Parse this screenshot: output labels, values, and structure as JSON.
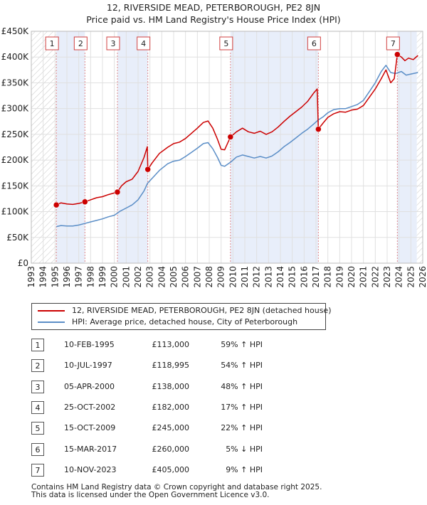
{
  "chart_data": {
    "type": "line",
    "title": "12, RIVERSIDE MEAD, PETERBOROUGH, PE2 8JN",
    "subtitle": "Price paid vs. HM Land Registry's House Price Index (HPI)",
    "xlim": [
      1993,
      2026
    ],
    "ylim": [
      0,
      450000
    ],
    "x_ticks": [
      "1993",
      "1994",
      "1995",
      "1996",
      "1997",
      "1998",
      "1999",
      "2000",
      "2001",
      "2002",
      "2003",
      "2004",
      "2005",
      "2006",
      "2007",
      "2008",
      "2009",
      "2010",
      "2011",
      "2012",
      "2013",
      "2014",
      "2015",
      "2016",
      "2017",
      "2018",
      "2019",
      "2020",
      "2021",
      "2022",
      "2023",
      "2024",
      "2025",
      "2026"
    ],
    "y_ticks": [
      {
        "value": 0,
        "label": "£0"
      },
      {
        "value": 50000,
        "label": "£50K"
      },
      {
        "value": 100000,
        "label": "£100K"
      },
      {
        "value": 150000,
        "label": "£150K"
      },
      {
        "value": 200000,
        "label": "£200K"
      },
      {
        "value": 250000,
        "label": "£250K"
      },
      {
        "value": 300000,
        "label": "£300K"
      },
      {
        "value": 350000,
        "label": "£350K"
      },
      {
        "value": 400000,
        "label": "£400K"
      },
      {
        "value": 450000,
        "label": "£450K"
      }
    ],
    "series": [
      {
        "name": "12, RIVERSIDE MEAD, PETERBOROUGH, PE2 8JN (detached house)",
        "color": "#cc0000",
        "points": [
          [
            1995.11,
            113000
          ],
          [
            1995.5,
            117000
          ],
          [
            1996,
            115000
          ],
          [
            1996.5,
            114000
          ],
          [
            1997,
            116000
          ],
          [
            1997.52,
            118995
          ],
          [
            1998,
            123000
          ],
          [
            1998.5,
            127000
          ],
          [
            1999,
            129000
          ],
          [
            1999.5,
            133000
          ],
          [
            2000.26,
            138000
          ],
          [
            2000.6,
            150000
          ],
          [
            2001,
            158000
          ],
          [
            2001.5,
            163000
          ],
          [
            2002,
            178000
          ],
          [
            2002.5,
            205000
          ],
          [
            2002.78,
            226000
          ],
          [
            2002.82,
            182000
          ],
          [
            2003.2,
            195000
          ],
          [
            2003.8,
            213000
          ],
          [
            2004.5,
            225000
          ],
          [
            2005,
            232000
          ],
          [
            2005.5,
            235000
          ],
          [
            2006,
            242000
          ],
          [
            2006.5,
            252000
          ],
          [
            2007,
            262000
          ],
          [
            2007.5,
            273000
          ],
          [
            2007.9,
            276000
          ],
          [
            2008.3,
            262000
          ],
          [
            2008.7,
            240000
          ],
          [
            2009,
            221000
          ],
          [
            2009.3,
            220000
          ],
          [
            2009.79,
            245000
          ],
          [
            2010.3,
            255000
          ],
          [
            2010.8,
            262000
          ],
          [
            2011.3,
            255000
          ],
          [
            2011.8,
            252000
          ],
          [
            2012.3,
            256000
          ],
          [
            2012.8,
            250000
          ],
          [
            2013.3,
            255000
          ],
          [
            2013.8,
            264000
          ],
          [
            2014.3,
            275000
          ],
          [
            2014.8,
            285000
          ],
          [
            2015.3,
            294000
          ],
          [
            2015.8,
            303000
          ],
          [
            2016.3,
            314000
          ],
          [
            2016.8,
            330000
          ],
          [
            2017.1,
            338000
          ],
          [
            2017.15,
            300000
          ],
          [
            2017.2,
            260000
          ],
          [
            2017.6,
            272000
          ],
          [
            2018,
            283000
          ],
          [
            2018.5,
            290000
          ],
          [
            2019,
            294000
          ],
          [
            2019.5,
            293000
          ],
          [
            2020,
            297000
          ],
          [
            2020.5,
            299000
          ],
          [
            2021,
            306000
          ],
          [
            2021.5,
            322000
          ],
          [
            2022,
            338000
          ],
          [
            2022.5,
            358000
          ],
          [
            2022.9,
            375000
          ],
          [
            2023.3,
            350000
          ],
          [
            2023.6,
            358000
          ],
          [
            2023.86,
            405000
          ],
          [
            2024.2,
            400000
          ],
          [
            2024.5,
            393000
          ],
          [
            2024.8,
            398000
          ],
          [
            2025.2,
            395000
          ],
          [
            2025.6,
            403000
          ]
        ]
      },
      {
        "name": "HPI: Average price, detached house, City of Peterborough",
        "color": "#5b8ec7",
        "points": [
          [
            1995.11,
            71000
          ],
          [
            1995.5,
            73000
          ],
          [
            1996,
            72000
          ],
          [
            1996.5,
            72000
          ],
          [
            1997,
            74000
          ],
          [
            1997.5,
            77000
          ],
          [
            1998,
            80000
          ],
          [
            1998.5,
            83000
          ],
          [
            1999,
            86000
          ],
          [
            1999.5,
            90000
          ],
          [
            2000,
            93000
          ],
          [
            2000.5,
            101000
          ],
          [
            2001,
            107000
          ],
          [
            2001.5,
            113000
          ],
          [
            2002,
            123000
          ],
          [
            2002.5,
            140000
          ],
          [
            2002.8,
            155000
          ],
          [
            2003.2,
            165000
          ],
          [
            2003.8,
            180000
          ],
          [
            2004.5,
            193000
          ],
          [
            2005,
            198000
          ],
          [
            2005.5,
            200000
          ],
          [
            2006,
            207000
          ],
          [
            2006.5,
            215000
          ],
          [
            2007,
            223000
          ],
          [
            2007.5,
            232000
          ],
          [
            2007.9,
            234000
          ],
          [
            2008.3,
            222000
          ],
          [
            2008.7,
            205000
          ],
          [
            2009,
            190000
          ],
          [
            2009.3,
            188000
          ],
          [
            2009.8,
            196000
          ],
          [
            2010.3,
            206000
          ],
          [
            2010.8,
            210000
          ],
          [
            2011.3,
            207000
          ],
          [
            2011.8,
            204000
          ],
          [
            2012.3,
            207000
          ],
          [
            2012.8,
            204000
          ],
          [
            2013.3,
            208000
          ],
          [
            2013.8,
            216000
          ],
          [
            2014.3,
            226000
          ],
          [
            2014.8,
            234000
          ],
          [
            2015.3,
            243000
          ],
          [
            2015.8,
            252000
          ],
          [
            2016.3,
            260000
          ],
          [
            2016.8,
            270000
          ],
          [
            2017.2,
            278000
          ],
          [
            2017.6,
            284000
          ],
          [
            2018,
            292000
          ],
          [
            2018.5,
            298000
          ],
          [
            2019,
            300000
          ],
          [
            2019.5,
            300000
          ],
          [
            2020,
            304000
          ],
          [
            2020.5,
            308000
          ],
          [
            2021,
            316000
          ],
          [
            2021.5,
            333000
          ],
          [
            2022,
            350000
          ],
          [
            2022.5,
            372000
          ],
          [
            2022.9,
            384000
          ],
          [
            2023.3,
            370000
          ],
          [
            2023.7,
            368000
          ],
          [
            2024.2,
            372000
          ],
          [
            2024.6,
            365000
          ],
          [
            2025,
            367000
          ],
          [
            2025.6,
            370000
          ]
        ]
      }
    ],
    "transactions": [
      {
        "n": "1",
        "x": 1995.11,
        "price": 113000,
        "date": "10-FEB-1995",
        "price_label": "£113,000",
        "hpi": "59% ↑ HPI"
      },
      {
        "n": "2",
        "x": 1997.52,
        "price": 118995,
        "date": "10-JUL-1997",
        "price_label": "£118,995",
        "hpi": "54% ↑ HPI"
      },
      {
        "n": "3",
        "x": 2000.26,
        "price": 138000,
        "date": "05-APR-2000",
        "price_label": "£138,000",
        "hpi": "48% ↑ HPI"
      },
      {
        "n": "4",
        "x": 2002.82,
        "price": 182000,
        "date": "25-OCT-2002",
        "price_label": "£182,000",
        "hpi": "17% ↑ HPI"
      },
      {
        "n": "5",
        "x": 2009.79,
        "price": 245000,
        "date": "15-OCT-2009",
        "price_label": "£245,000",
        "hpi": "22% ↑ HPI"
      },
      {
        "n": "6",
        "x": 2017.2,
        "price": 260000,
        "date": "15-MAR-2017",
        "price_label": "£260,000",
        "hpi": "5% ↓ HPI"
      },
      {
        "n": "7",
        "x": 2023.86,
        "price": 405000,
        "date": "10-NOV-2023",
        "price_label": "£405,000",
        "hpi": "9% ↑ HPI"
      }
    ],
    "shaded_periods": [
      [
        1995.11,
        1997.52
      ],
      [
        2000.26,
        2002.82
      ],
      [
        2009.79,
        2017.2
      ],
      [
        2023.86,
        2025.5
      ]
    ],
    "hatched_periods": [
      [
        1993,
        1995.11
      ],
      [
        2025.5,
        2026
      ]
    ],
    "colors": {
      "red": "#cc0000",
      "blue": "#5b8ec7",
      "shade": "#e8eefa",
      "grid": "#e0e0e0",
      "vline": "#d04040"
    }
  },
  "legend": {
    "red_label": "12, RIVERSIDE MEAD, PETERBOROUGH, PE2 8JN (detached house)",
    "blue_label": "HPI: Average price, detached house, City of Peterborough"
  },
  "footer": {
    "line1": "Contains HM Land Registry data © Crown copyright and database right 2025.",
    "line2": "This data is licensed under the Open Government Licence v3.0."
  }
}
